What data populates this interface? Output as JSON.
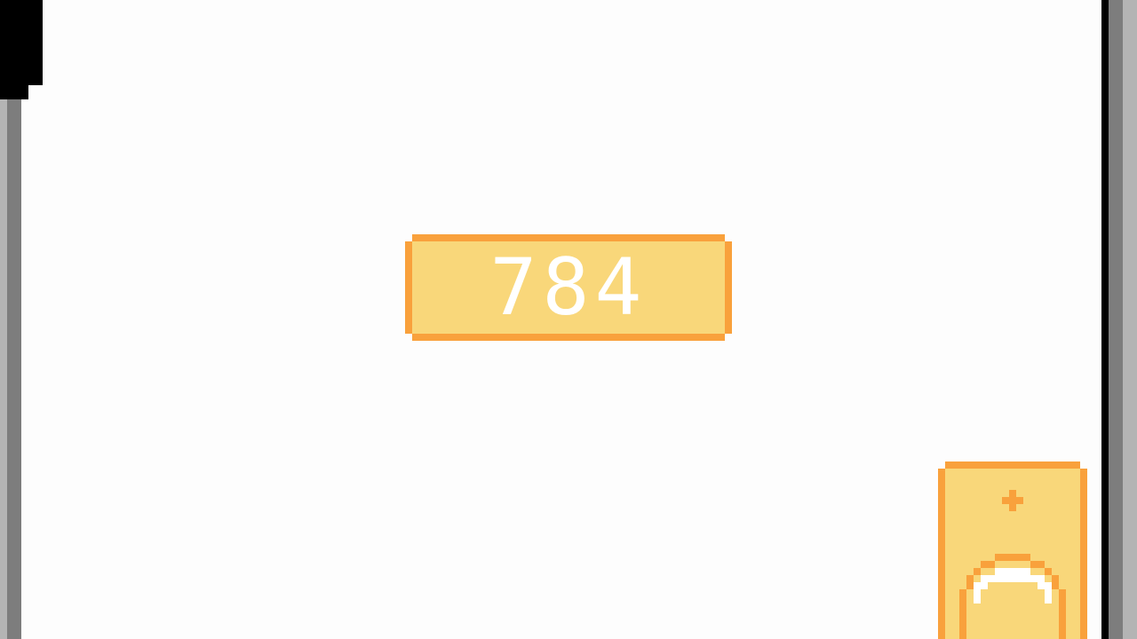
{
  "score": {
    "value": "784"
  },
  "colors": {
    "panel_fill": "#f9d77a",
    "panel_border": "#f9a13c",
    "score_text": "#ffffff",
    "background": "#fdfdfd",
    "frame_dark": "#7d7d7d",
    "frame_light": "#b4b4b4"
  },
  "item_card": {
    "icons": [
      "plus-icon",
      "orb-icon"
    ]
  }
}
